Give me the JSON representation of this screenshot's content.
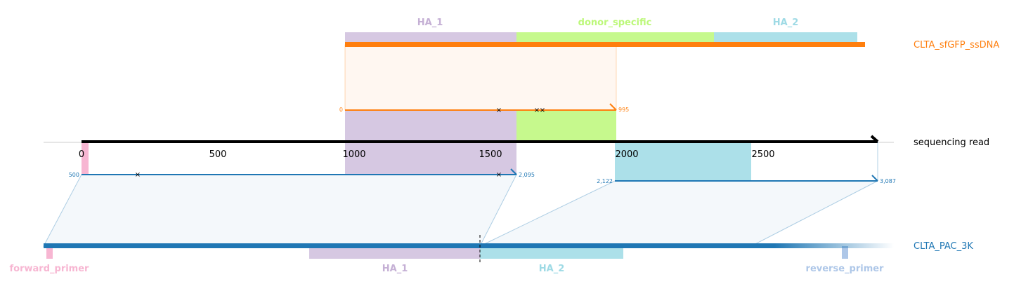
{
  "donor": {
    "name": "CLTA_sfGFP_ssDNA",
    "color": "#ff7f0e",
    "features": [
      {
        "label": "HA_1",
        "color": "#c5b0d5"
      },
      {
        "label": "donor_specific",
        "color": "#bcf879"
      },
      {
        "label": "HA_2",
        "color": "#9edae5"
      }
    ]
  },
  "read": {
    "name": "sequencing read",
    "axis_ticks": [
      "0",
      "500",
      "1000",
      "1500",
      "2000",
      "2500"
    ]
  },
  "target": {
    "name": "CLTA_PAC_3K",
    "color": "#1f77b4",
    "features": [
      {
        "label": "forward_primer",
        "color": "#f7b6d2"
      },
      {
        "label": "HA_1",
        "color": "#c5b0d5"
      },
      {
        "label": "HA_2",
        "color": "#9edae5"
      },
      {
        "label": "reverse_primer",
        "color": "#aec7e8"
      }
    ]
  },
  "alignments": [
    {
      "ref": "donor",
      "ref_start": "0",
      "ref_end": "995"
    },
    {
      "ref": "target",
      "ref_start": "500",
      "ref_end": "2,095"
    },
    {
      "ref": "target",
      "ref_start": "2,122",
      "ref_end": "3,087"
    }
  ]
}
